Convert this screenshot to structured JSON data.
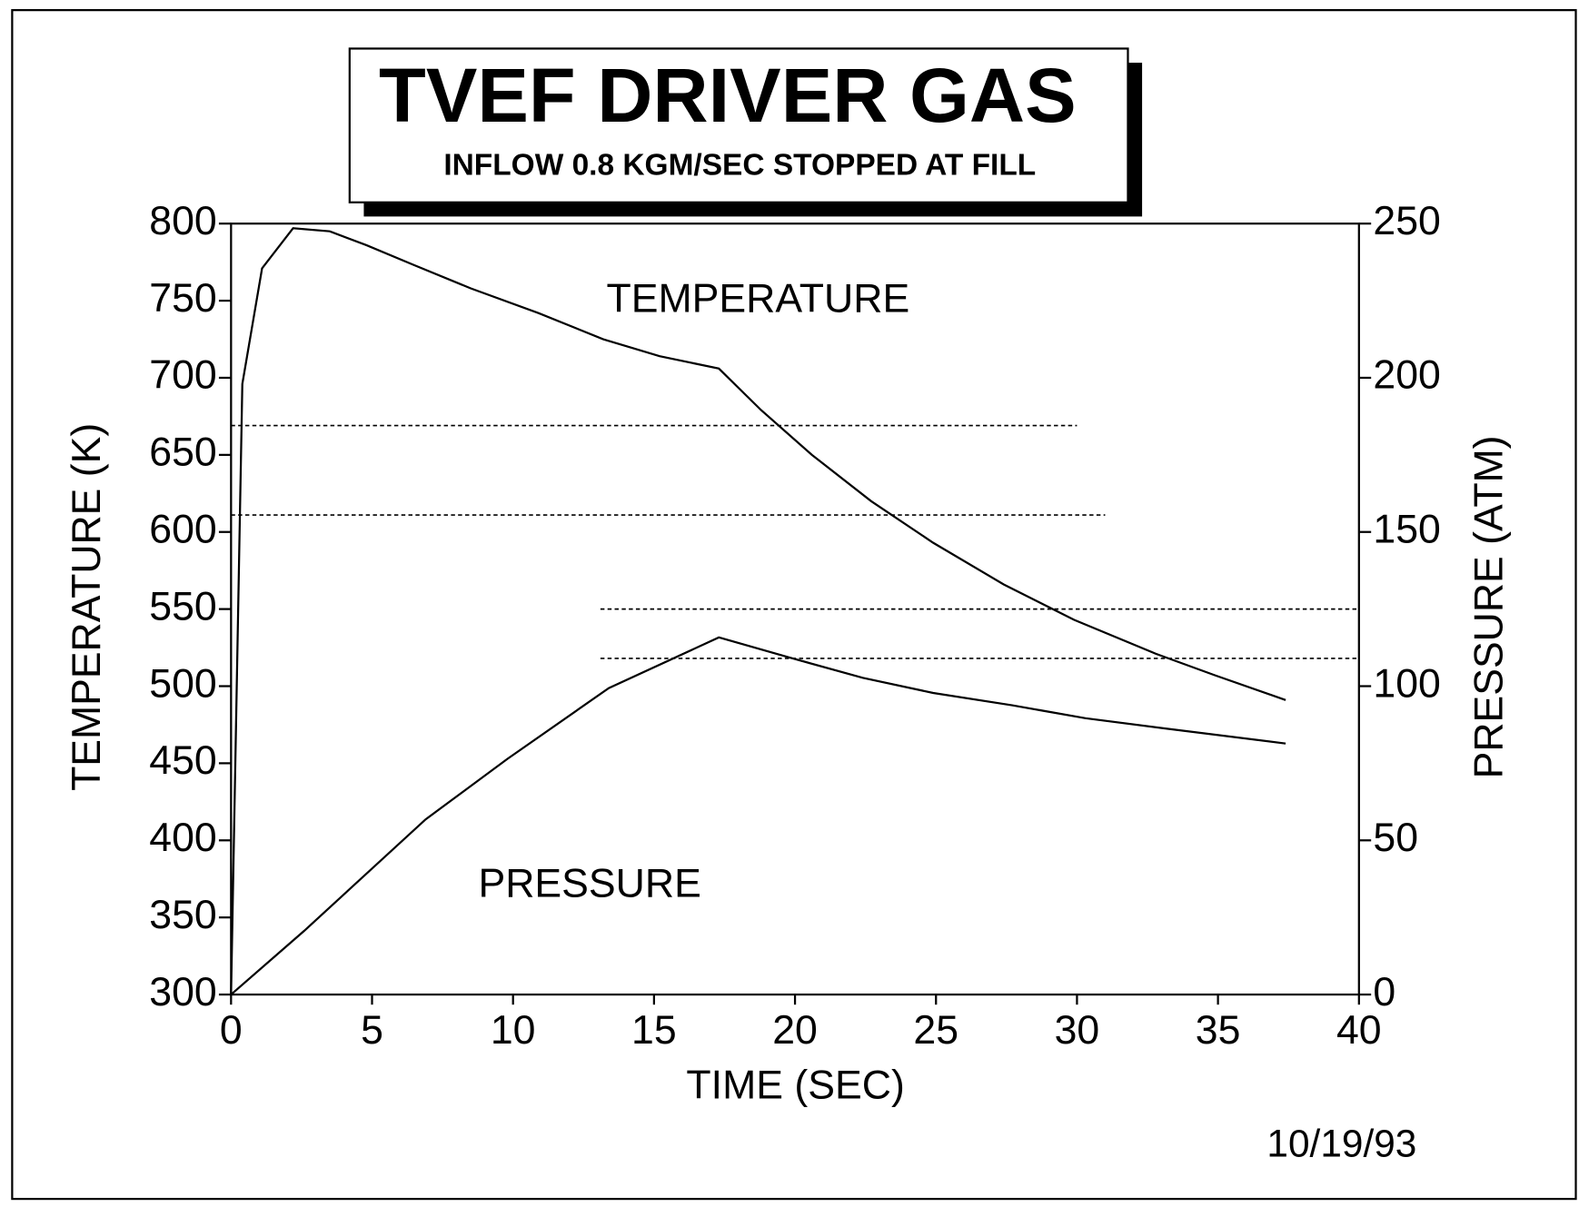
{
  "chart_data": {
    "type": "line",
    "title": "TVEF DRIVER GAS",
    "subtitle": "INFLOW 0.8 KGM/SEC STOPPED AT FILL",
    "xlabel": "TIME (SEC)",
    "ylabel": "TEMPERATURE (K)",
    "y2label": "PRESSURE (ATM)",
    "date": "10/19/93",
    "xlim": [
      0,
      40
    ],
    "xticks": [
      0,
      5,
      10,
      15,
      20,
      25,
      30,
      35,
      40
    ],
    "ylim": [
      300,
      800
    ],
    "yticks": [
      300,
      350,
      400,
      450,
      500,
      550,
      600,
      650,
      700,
      750,
      800
    ],
    "y2lim": [
      0,
      250
    ],
    "y2ticks": [
      0,
      50,
      100,
      150,
      200,
      250
    ],
    "series": [
      {
        "label": "TEMPERATURE",
        "color": "#000000",
        "x": [
          0,
          0.4,
          1.1,
          2.2,
          3.5,
          4.8,
          6.5,
          8.5,
          10.9,
          13.2,
          15.2,
          17.3,
          18.8,
          20.6,
          22.7,
          24.9,
          27.4,
          29.9,
          32.8,
          34.9,
          37.4
        ],
        "values": [
          300,
          696,
          771,
          797,
          795,
          786,
          773,
          758,
          742,
          725,
          714,
          706,
          679,
          650,
          620,
          593,
          566,
          543,
          521,
          507,
          491
        ]
      },
      {
        "label": "PRESSURE",
        "color": "#000000",
        "axis": "y2",
        "x": [
          0,
          2.6,
          6.9,
          9.8,
          13.4,
          17.3,
          19.8,
          22.4,
          24.9,
          27.7,
          30.3,
          33.1,
          37.4
        ],
        "values": [
          0,
          20.7,
          56.8,
          76.4,
          99.4,
          115.8,
          109.3,
          102.7,
          97.8,
          93.8,
          89.6,
          86.3,
          81.4
        ]
      }
    ],
    "reference_lines": [
      {
        "axis": "y",
        "value": 669,
        "x": [
          0,
          30
        ]
      },
      {
        "axis": "y",
        "value": 611,
        "x": [
          0,
          31
        ]
      },
      {
        "axis": "y2",
        "value": 125,
        "x": [
          13.1,
          40
        ]
      },
      {
        "axis": "y2",
        "value": 109,
        "x": [
          13.1,
          40
        ]
      }
    ]
  }
}
